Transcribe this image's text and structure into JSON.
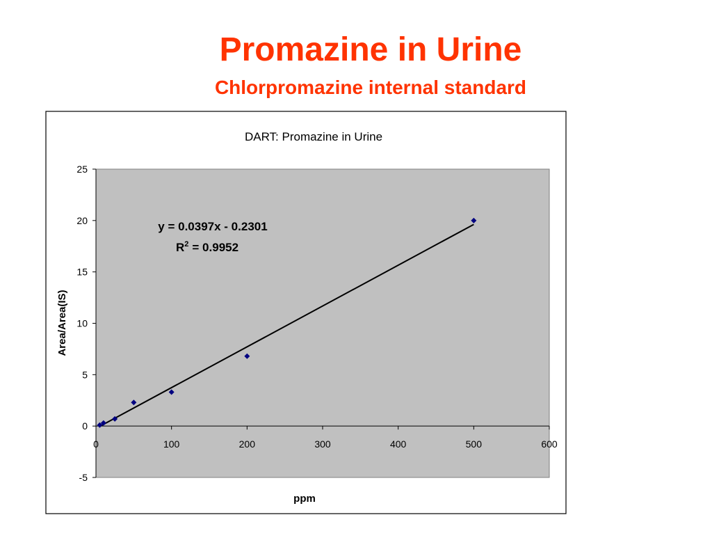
{
  "slide": {
    "title": "Promazine in Urine",
    "subtitle": "Chlorpromazine internal standard"
  },
  "chart_data": {
    "type": "scatter",
    "title": "DART: Promazine in Urine",
    "x_label": "ppm",
    "y_label": "Area/Area(IS)",
    "x": [
      5,
      10,
      25,
      50,
      100,
      200,
      500
    ],
    "series": [
      {
        "color": "#000080",
        "values": [
          0.1,
          0.3,
          0.7,
          2.3,
          3.3,
          6.8,
          20.0
        ]
      }
    ],
    "xlim": [
      0,
      600
    ],
    "xticks": [
      0,
      100,
      200,
      300,
      400,
      500,
      600
    ],
    "ylim": [
      -5,
      25
    ],
    "yticks": [
      -5,
      0,
      5,
      10,
      15,
      20,
      25
    ],
    "trendline": {
      "slope": 0.0397,
      "intercept": -0.2301,
      "x": [
        5,
        500
      ],
      "color": "#000000",
      "equation": "y = 0.0397x - 0.2301",
      "r_symbol": "R",
      "r_exponent": "2",
      "r_text": "= 0.9952"
    },
    "plot_background": "#c0c0c0"
  }
}
